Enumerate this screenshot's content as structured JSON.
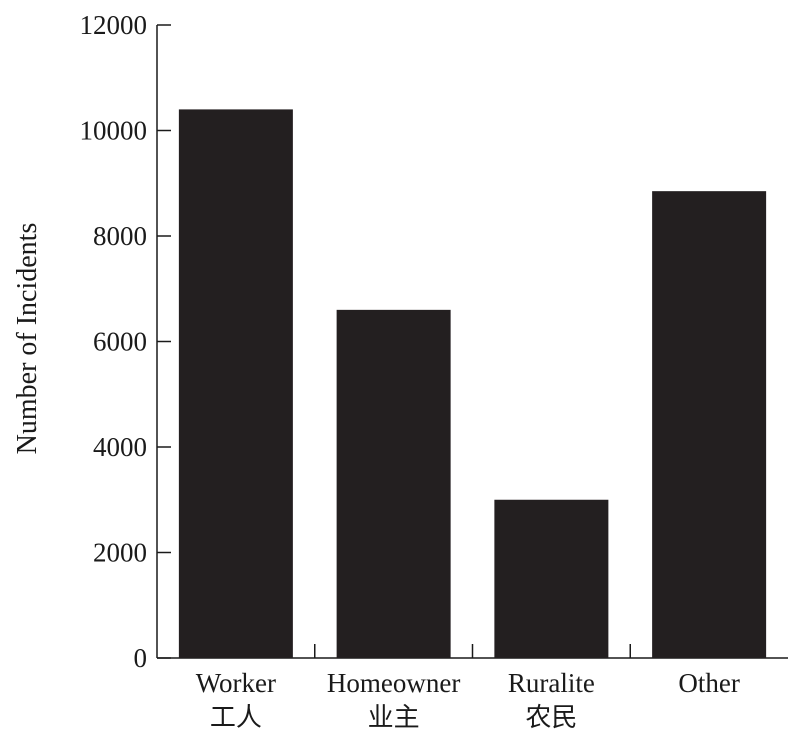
{
  "chart_data": {
    "type": "bar",
    "title": "",
    "xlabel": "",
    "ylabel": "Number of Incidents",
    "ylim": [
      0,
      12000
    ],
    "yticks": [
      0,
      2000,
      4000,
      6000,
      8000,
      10000,
      12000
    ],
    "ytick_labels": [
      "0",
      "2000",
      "4000",
      "6000",
      "8000",
      "10000",
      "12000"
    ],
    "categories": [
      "Worker",
      "Homeowner",
      "Ruralite",
      "Other"
    ],
    "category_sublabels": [
      "工人",
      "业主",
      "农民",
      ""
    ],
    "values": [
      10400,
      6600,
      3000,
      8850
    ],
    "bar_color": "#231f20",
    "axis_color": "#1a1a1a",
    "grid": false,
    "legend": "none"
  }
}
